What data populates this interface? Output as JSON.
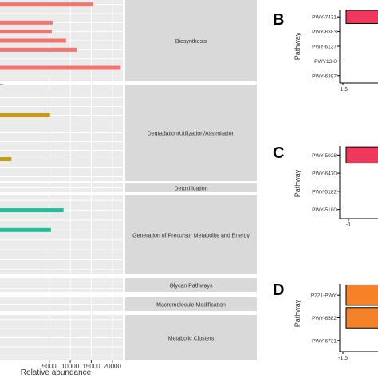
{
  "chart_data": [
    {
      "type": "bar",
      "orientation": "horizontal",
      "xlabel": "Relative abundance",
      "xlim": [
        -6700,
        22500
      ],
      "x_ticks": [
        "5000",
        "10000",
        "15000",
        "20000"
      ],
      "x_tick_values": [
        5000,
        10000,
        15000,
        20000
      ],
      "grid": true,
      "facets": [
        {
          "label": "Biosynthesis",
          "color": "#f07470",
          "row_count": 9,
          "bars": [
            {
              "row": 0,
              "value": 15500
            },
            {
              "row": 2,
              "value": 5800
            },
            {
              "row": 3,
              "value": 5600
            },
            {
              "row": 4,
              "value": 9000
            },
            {
              "row": 5,
              "value": 11500
            },
            {
              "row": 7,
              "value": 22000
            },
            {
              "row": 9,
              "value": -6000
            }
          ]
        },
        {
          "label": "Degradation/Utilization/Assimilation",
          "color": "#c49a1a",
          "row_count": 11,
          "bars": [
            {
              "row": 3,
              "value": 5200
            },
            {
              "row": 8,
              "value": -4000
            }
          ]
        },
        {
          "label": "Detoxification",
          "color": "#c49a1a",
          "row_count": 1,
          "bars": []
        },
        {
          "label": "Generation of Precursor Metabolite and Energy",
          "color": "#1fbf99",
          "row_count": 8,
          "bars": [
            {
              "row": 1,
              "value": 8400
            },
            {
              "row": 3,
              "value": 5400
            }
          ]
        },
        {
          "label": "Glycan Pathways",
          "color": "#1fbf99",
          "row_count": 2,
          "bars": []
        },
        {
          "label": "Macromolecule Modification",
          "color": "#1fbf99",
          "row_count": 1,
          "bars": []
        },
        {
          "label": "Metabolic Clusters",
          "color": "#1fbf99",
          "row_count": 5,
          "bars": []
        }
      ]
    },
    {
      "type": "bar",
      "panel": "B",
      "ylabel": "Pathway",
      "categories": [
        "PWY-7431",
        "PWY-6383",
        "PWY-6137",
        "PWY13-0",
        "PWY-6397"
      ],
      "x_ticks": [
        "-1.5"
      ],
      "values": [
        1,
        null,
        null,
        null,
        null
      ],
      "color": "#f0375c"
    },
    {
      "type": "bar",
      "panel": "C",
      "ylabel": "Pathway",
      "categories": [
        "PWY-5028",
        "PWY-6470",
        "PWY-5182",
        "PWY-5180"
      ],
      "x_ticks": [
        "-1"
      ],
      "values": [
        1,
        null,
        null,
        null
      ],
      "color": "#f0375c"
    },
    {
      "type": "bar",
      "panel": "D",
      "ylabel": "Pathway",
      "categories": [
        "P221-PWY",
        "PWY-6582",
        "PWY-6731"
      ],
      "x_ticks": [
        "-1.5"
      ],
      "values": [
        1,
        1,
        null
      ],
      "color": "#f58228"
    }
  ],
  "panel_letters": [
    "B",
    "C",
    "D"
  ]
}
